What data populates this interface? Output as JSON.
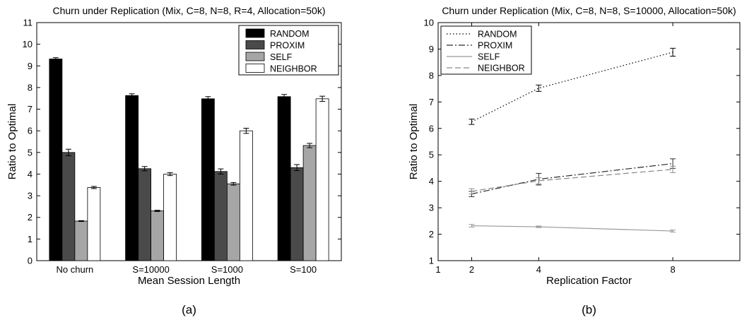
{
  "chart_data": [
    {
      "type": "bar",
      "title": "Churn under Replication (Mix, C=8, N=8, R=4, Allocation=50k)",
      "xlabel": "Mean Session Length",
      "ylabel": "Ratio to Optimal",
      "panel_label": "(a)",
      "ylim": [
        0,
        11
      ],
      "yticks": [
        "0",
        "1",
        "2",
        "3",
        "4",
        "5",
        "6",
        "7",
        "8",
        "9",
        "10",
        "11"
      ],
      "grid": false,
      "legend_position": "top-right",
      "categories": [
        "No churn",
        "S=10000",
        "S=1000",
        "S=100"
      ],
      "series": [
        {
          "name": "RANDOM",
          "color": "#000000",
          "values": [
            9.32,
            7.63,
            7.48,
            7.58
          ],
          "errors": [
            0.06,
            0.08,
            0.1,
            0.1
          ]
        },
        {
          "name": "PROXIM",
          "color": "#4a4a4a",
          "values": [
            5.0,
            4.25,
            4.12,
            4.3
          ],
          "errors": [
            0.15,
            0.1,
            0.12,
            0.14
          ]
        },
        {
          "name": "SELF",
          "color": "#a6a6a6",
          "values": [
            1.83,
            2.3,
            3.55,
            5.32
          ],
          "errors": [
            0.02,
            0.03,
            0.06,
            0.1
          ]
        },
        {
          "name": "NEIGHBOR",
          "color": "#ffffff",
          "values": [
            3.38,
            4.0,
            6.0,
            7.48
          ],
          "errors": [
            0.05,
            0.07,
            0.12,
            0.12
          ]
        }
      ]
    },
    {
      "type": "line",
      "title": "Churn under Replication (Mix, C=8, N=8, S=10000, Allocation=50k)",
      "xlabel": "Replication Factor",
      "ylabel": "Ratio to Optimal",
      "panel_label": "(b)",
      "xlim": [
        1,
        10
      ],
      "ylim": [
        1,
        10
      ],
      "xticks": [
        "1",
        "2",
        "4",
        "8"
      ],
      "yticks": [
        "1",
        "2",
        "3",
        "4",
        "5",
        "6",
        "7",
        "8",
        "9",
        "10"
      ],
      "grid": false,
      "legend_position": "top-left",
      "x": [
        2,
        4,
        8
      ],
      "series": [
        {
          "name": "RANDOM",
          "color": "#000000",
          "dash": "1.5,3",
          "values": [
            6.25,
            7.52,
            8.88
          ],
          "errors": [
            0.1,
            0.12,
            0.15
          ]
        },
        {
          "name": "PROXIM",
          "color": "#2a2a2a",
          "dash": "9,3,2,3",
          "values": [
            3.52,
            4.08,
            4.67
          ],
          "errors": [
            0.1,
            0.22,
            0.18
          ]
        },
        {
          "name": "SELF",
          "color": "#999999",
          "dash": "",
          "values": [
            2.32,
            2.28,
            2.12
          ],
          "errors": [
            0.05,
            0.03,
            0.04
          ]
        },
        {
          "name": "NEIGHBOR",
          "color": "#888888",
          "dash": "8,4",
          "values": [
            3.62,
            4.02,
            4.45
          ],
          "errors": [
            0.1,
            0.12,
            0.12
          ]
        }
      ]
    }
  ]
}
